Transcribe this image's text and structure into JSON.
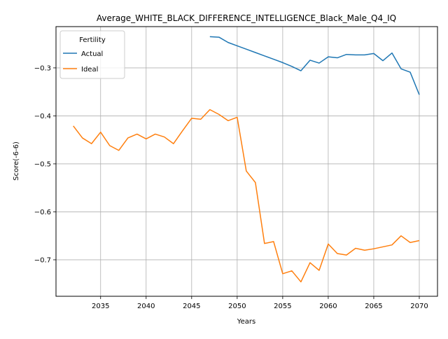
{
  "chart_data": {
    "type": "line",
    "title": "Average_WHITE_BLACK_DIFFERENCE_INTELLIGENCE_Black_Male_Q4_IQ",
    "xlabel": "Years",
    "ylabel": "Score(-6-6)",
    "xlim": [
      2030.1,
      2072.0
    ],
    "ylim": [
      -0.776,
      -0.214
    ],
    "xticks": [
      2035,
      2040,
      2045,
      2050,
      2055,
      2060,
      2065,
      2070
    ],
    "xtick_labels": [
      "2035",
      "2040",
      "2045",
      "2050",
      "2055",
      "2060",
      "2065",
      "2070"
    ],
    "yticks": [
      -0.3,
      -0.4,
      -0.5,
      -0.6,
      -0.7
    ],
    "ytick_labels": [
      "−0.3",
      "−0.4",
      "−0.5",
      "−0.6",
      "−0.7"
    ],
    "grid": true,
    "legend": {
      "title": "Fertility",
      "placement": "top-left"
    },
    "series": [
      {
        "name": "Actual",
        "color": "#1f77b4",
        "x": [
          2047,
          2048,
          2049,
          2050,
          2051,
          2052,
          2053,
          2054,
          2055,
          2056,
          2057,
          2058,
          2059,
          2060,
          2061,
          2062,
          2063,
          2064,
          2065,
          2066,
          2067,
          2068,
          2069,
          2070
        ],
        "y": [
          -0.235,
          -0.236,
          -0.247,
          -0.254,
          -0.261,
          -0.268,
          -0.275,
          -0.282,
          -0.289,
          -0.297,
          -0.306,
          -0.284,
          -0.29,
          -0.277,
          -0.279,
          -0.272,
          -0.273,
          -0.273,
          -0.27,
          -0.285,
          -0.269,
          -0.302,
          -0.309,
          -0.356
        ]
      },
      {
        "name": "Ideal",
        "color": "#ff7f0e",
        "x": [
          2032,
          2033,
          2034,
          2035,
          2036,
          2037,
          2038,
          2039,
          2040,
          2041,
          2042,
          2043,
          2044,
          2045,
          2046,
          2047,
          2048,
          2049,
          2050,
          2051,
          2052,
          2053,
          2054,
          2055,
          2056,
          2057,
          2058,
          2059,
          2060,
          2061,
          2062,
          2063,
          2064,
          2065,
          2066,
          2067,
          2068,
          2069,
          2070
        ],
        "y": [
          -0.421,
          -0.446,
          -0.458,
          -0.434,
          -0.462,
          -0.472,
          -0.446,
          -0.438,
          -0.448,
          -0.438,
          -0.444,
          -0.458,
          -0.431,
          -0.405,
          -0.407,
          -0.387,
          -0.397,
          -0.41,
          -0.403,
          -0.515,
          -0.539,
          -0.666,
          -0.662,
          -0.729,
          -0.723,
          -0.746,
          -0.706,
          -0.722,
          -0.667,
          -0.687,
          -0.69,
          -0.676,
          -0.68,
          -0.677,
          -0.673,
          -0.669,
          -0.65,
          -0.664,
          -0.66
        ]
      }
    ]
  }
}
